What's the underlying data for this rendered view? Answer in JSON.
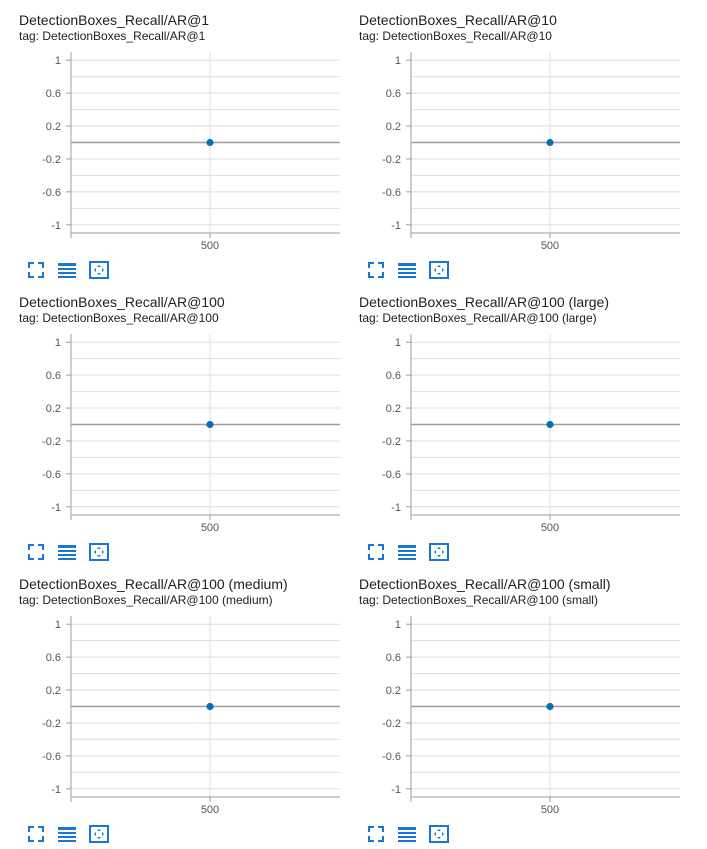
{
  "colors": {
    "accent": "#1976d2",
    "point": "#0b6fb0",
    "grid": "#dddddd",
    "axis": "#9e9e9e",
    "zeroline": "#9e9e9e"
  },
  "toolbar": {
    "fullscreen_icon": "fullscreen-icon",
    "data_table_icon": "data-table-icon",
    "fit_domain_icon": "fit-domain-icon"
  },
  "charts": [
    {
      "title": "DetectionBoxes_Recall/AR@1",
      "tag": "tag: DetectionBoxes_Recall/AR@1"
    },
    {
      "title": "DetectionBoxes_Recall/AR@10",
      "tag": "tag: DetectionBoxes_Recall/AR@10"
    },
    {
      "title": "DetectionBoxes_Recall/AR@100",
      "tag": "tag: DetectionBoxes_Recall/AR@100"
    },
    {
      "title": "DetectionBoxes_Recall/AR@100 (large)",
      "tag": "tag: DetectionBoxes_Recall/AR@100 (large)"
    },
    {
      "title": "DetectionBoxes_Recall/AR@100 (medium)",
      "tag": "tag: DetectionBoxes_Recall/AR@100 (medium)"
    },
    {
      "title": "DetectionBoxes_Recall/AR@100 (small)",
      "tag": "tag: DetectionBoxes_Recall/AR@100 (small)"
    }
  ],
  "chart_data": [
    {
      "type": "scatter",
      "title": "DetectionBoxes_Recall/AR@1",
      "x": [
        500
      ],
      "y": [
        0
      ],
      "xticks": [
        "500"
      ],
      "yticks": [
        "1",
        "0.6",
        "0.2",
        "-0.2",
        "-0.6",
        "-1"
      ],
      "ylim": [
        -1.1,
        1.1
      ],
      "grid": true
    },
    {
      "type": "scatter",
      "title": "DetectionBoxes_Recall/AR@10",
      "x": [
        500
      ],
      "y": [
        0
      ],
      "xticks": [
        "500"
      ],
      "yticks": [
        "1",
        "0.6",
        "0.2",
        "-0.2",
        "-0.6",
        "-1"
      ],
      "ylim": [
        -1.1,
        1.1
      ],
      "grid": true
    },
    {
      "type": "scatter",
      "title": "DetectionBoxes_Recall/AR@100",
      "x": [
        500
      ],
      "y": [
        0
      ],
      "xticks": [
        "500"
      ],
      "yticks": [
        "1",
        "0.6",
        "0.2",
        "-0.2",
        "-0.6",
        "-1"
      ],
      "ylim": [
        -1.1,
        1.1
      ],
      "grid": true
    },
    {
      "type": "scatter",
      "title": "DetectionBoxes_Recall/AR@100 (large)",
      "x": [
        500
      ],
      "y": [
        0
      ],
      "xticks": [
        "500"
      ],
      "yticks": [
        "1",
        "0.6",
        "0.2",
        "-0.2",
        "-0.6",
        "-1"
      ],
      "ylim": [
        -1.1,
        1.1
      ],
      "grid": true
    },
    {
      "type": "scatter",
      "title": "DetectionBoxes_Recall/AR@100 (medium)",
      "x": [
        500
      ],
      "y": [
        0
      ],
      "xticks": [
        "500"
      ],
      "yticks": [
        "1",
        "0.6",
        "0.2",
        "-0.2",
        "-0.6",
        "-1"
      ],
      "ylim": [
        -1.1,
        1.1
      ],
      "grid": true
    },
    {
      "type": "scatter",
      "title": "DetectionBoxes_Recall/AR@100 (small)",
      "x": [
        500
      ],
      "y": [
        0
      ],
      "xticks": [
        "500"
      ],
      "yticks": [
        "1",
        "0.6",
        "0.2",
        "-0.2",
        "-0.6",
        "-1"
      ],
      "ylim": [
        -1.1,
        1.1
      ],
      "grid": true
    }
  ]
}
